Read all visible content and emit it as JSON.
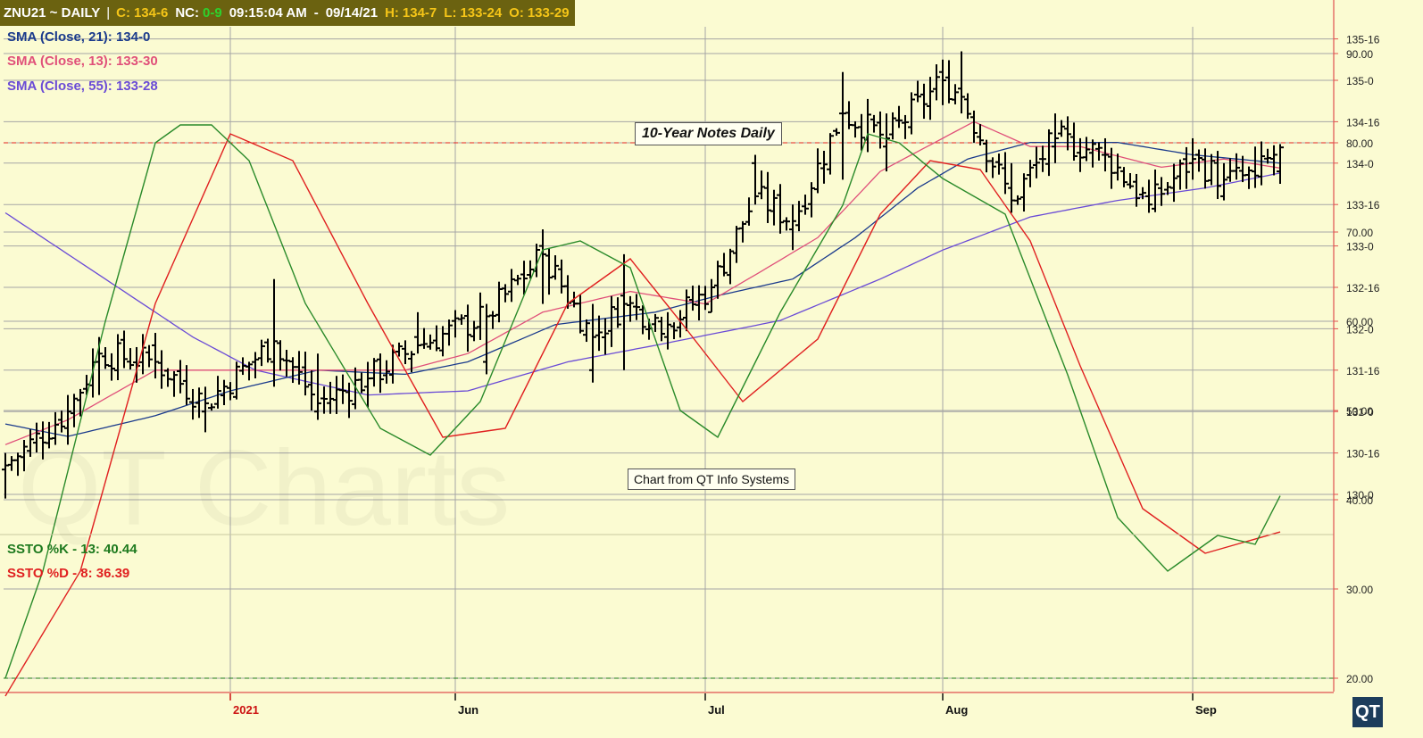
{
  "header": {
    "symbol": "ZNU21 ~ DAILY",
    "separator": "|",
    "close_label": "C:",
    "close_value": "134-6",
    "nc_label": "NC:",
    "nc_value": "0-9",
    "time": "09:15:04 AM",
    "dash": "-",
    "date": "09/14/21",
    "high_label": "H:",
    "high_value": "134-7",
    "low_label": "L:",
    "low_value": "133-24",
    "open_label": "O:",
    "open_value": "133-29"
  },
  "legend": [
    {
      "text": "SMA (Close, 21): 134-0",
      "color": "#1a3a8c"
    },
    {
      "text": "SMA (Close, 13): 133-30",
      "color": "#e0507a"
    },
    {
      "text": "SMA (Close, 55): 133-28",
      "color": "#6a4bd6"
    }
  ],
  "stoch_legend": [
    {
      "text": "SSTO %K - 13: 40.44",
      "color": "#1e7a1e"
    },
    {
      "text": "SSTO %D - 8: 36.39",
      "color": "#e02020"
    }
  ],
  "title_box": "10-Year Notes Daily",
  "credit_box": "Chart from QT Info Systems",
  "watermark": "QT Charts",
  "logo": "QT",
  "colors": {
    "background": "#fbfbd2",
    "header_bg": "#6b6210",
    "sma21": "#1a3a8c",
    "sma13": "#e0507a",
    "sma55": "#6a4bd6",
    "k_line": "#2a8a2a",
    "d_line": "#e02020",
    "axis_red": "#e05050"
  },
  "chart_data": [
    {
      "type": "ohlc",
      "price_unit": "points and 32nds",
      "ylim": [
        129.875,
        135.375
      ],
      "y_ticks": [
        {
          "value": 130.0,
          "label": "130-0"
        },
        {
          "value": 130.5,
          "label": "130-16"
        },
        {
          "value": 131.0,
          "label": "131-0"
        },
        {
          "value": 131.5,
          "label": "131-16"
        },
        {
          "value": 132.0,
          "label": "132-0"
        },
        {
          "value": 132.5,
          "label": "132-16"
        },
        {
          "value": 133.0,
          "label": "133-0"
        },
        {
          "value": 133.5,
          "label": "133-16"
        },
        {
          "value": 134.0,
          "label": "134-0"
        },
        {
          "value": 134.5,
          "label": "134-16"
        },
        {
          "value": 135.0,
          "label": "135-0"
        },
        {
          "value": 135.5,
          "label": "135-16"
        }
      ],
      "x_labels": [
        {
          "label": "2021",
          "index": 36,
          "color": "#cc1111"
        },
        {
          "label": "Jun",
          "index": 72,
          "color": "#111111"
        },
        {
          "label": "Jul",
          "index": 112,
          "color": "#111111"
        },
        {
          "label": "Aug",
          "index": 150,
          "color": "#111111"
        },
        {
          "label": "Sep",
          "index": 190,
          "color": "#111111"
        }
      ],
      "bar_count": 205,
      "key_bars": [
        {
          "i": 0,
          "o": 130.3,
          "h": 130.5,
          "l": 129.95,
          "c": 130.35
        },
        {
          "i": 10,
          "o": 130.8,
          "h": 131.2,
          "l": 130.6,
          "c": 131.0
        },
        {
          "i": 15,
          "o": 131.6,
          "h": 131.9,
          "l": 131.2,
          "c": 131.7
        },
        {
          "i": 24,
          "o": 131.8,
          "h": 131.95,
          "l": 131.4,
          "c": 131.6
        },
        {
          "i": 32,
          "o": 131.0,
          "h": 131.3,
          "l": 130.75,
          "c": 131.1
        },
        {
          "i": 43,
          "o": 131.6,
          "h": 132.6,
          "l": 131.3,
          "c": 131.85
        },
        {
          "i": 50,
          "o": 131.0,
          "h": 131.7,
          "l": 130.9,
          "c": 131.1
        },
        {
          "i": 58,
          "o": 131.3,
          "h": 131.6,
          "l": 131.05,
          "c": 131.4
        },
        {
          "i": 66,
          "o": 131.9,
          "h": 132.2,
          "l": 131.7,
          "c": 131.8
        },
        {
          "i": 77,
          "o": 131.6,
          "h": 132.3,
          "l": 131.45,
          "c": 132.15
        },
        {
          "i": 86,
          "o": 133.0,
          "h": 133.2,
          "l": 132.3,
          "c": 132.9
        },
        {
          "i": 94,
          "o": 131.5,
          "h": 132.3,
          "l": 131.35,
          "c": 131.9
        },
        {
          "i": 99,
          "o": 132.4,
          "h": 132.9,
          "l": 131.5,
          "c": 132.3
        },
        {
          "i": 106,
          "o": 131.9,
          "h": 132.2,
          "l": 131.75,
          "c": 132.05
        },
        {
          "i": 113,
          "o": 132.2,
          "h": 132.6,
          "l": 132.2,
          "c": 132.5
        },
        {
          "i": 120,
          "o": 134.0,
          "h": 134.1,
          "l": 133.5,
          "c": 133.6
        },
        {
          "i": 126,
          "o": 133.2,
          "h": 133.5,
          "l": 132.95,
          "c": 133.3
        },
        {
          "i": 134,
          "o": 134.6,
          "h": 135.1,
          "l": 133.8,
          "c": 134.6
        },
        {
          "i": 141,
          "o": 134.2,
          "h": 134.6,
          "l": 133.9,
          "c": 134.3
        },
        {
          "i": 150,
          "o": 135.1,
          "h": 135.25,
          "l": 134.7,
          "c": 135.0
        },
        {
          "i": 153,
          "o": 134.9,
          "h": 135.35,
          "l": 134.6,
          "c": 134.8
        },
        {
          "i": 161,
          "o": 133.7,
          "h": 134.0,
          "l": 133.4,
          "c": 133.55
        },
        {
          "i": 168,
          "o": 134.2,
          "h": 134.6,
          "l": 134.0,
          "c": 134.3
        },
        {
          "i": 176,
          "o": 134.1,
          "h": 134.3,
          "l": 133.9,
          "c": 134.1
        },
        {
          "i": 183,
          "o": 133.6,
          "h": 133.8,
          "l": 133.4,
          "c": 133.5
        },
        {
          "i": 190,
          "o": 134.0,
          "h": 134.3,
          "l": 133.8,
          "c": 134.05
        },
        {
          "i": 195,
          "o": 133.6,
          "h": 134.0,
          "l": 133.55,
          "c": 133.8
        },
        {
          "i": 200,
          "o": 133.9,
          "h": 134.2,
          "l": 133.7,
          "c": 133.85
        },
        {
          "i": 204,
          "o": 133.9,
          "h": 134.23,
          "l": 133.75,
          "c": 134.19
        }
      ],
      "sma13_points": [
        [
          0,
          130.6
        ],
        [
          10,
          130.9
        ],
        [
          24,
          131.5
        ],
        [
          36,
          131.5
        ],
        [
          50,
          131.5
        ],
        [
          64,
          131.5
        ],
        [
          74,
          131.7
        ],
        [
          86,
          132.2
        ],
        [
          100,
          132.45
        ],
        [
          112,
          132.3
        ],
        [
          120,
          132.65
        ],
        [
          130,
          133.1
        ],
        [
          140,
          133.9
        ],
        [
          150,
          134.3
        ],
        [
          155,
          134.5
        ],
        [
          164,
          134.2
        ],
        [
          172,
          134.2
        ],
        [
          185,
          133.95
        ],
        [
          195,
          134.05
        ],
        [
          204,
          133.94
        ]
      ],
      "sma21_points": [
        [
          0,
          130.85
        ],
        [
          10,
          130.7
        ],
        [
          24,
          130.95
        ],
        [
          36,
          131.25
        ],
        [
          50,
          131.5
        ],
        [
          64,
          131.45
        ],
        [
          74,
          131.6
        ],
        [
          88,
          132.05
        ],
        [
          104,
          132.2
        ],
        [
          114,
          132.4
        ],
        [
          126,
          132.6
        ],
        [
          136,
          133.1
        ],
        [
          146,
          133.7
        ],
        [
          154,
          134.05
        ],
        [
          164,
          134.25
        ],
        [
          178,
          134.25
        ],
        [
          190,
          134.1
        ],
        [
          204,
          134.0
        ]
      ],
      "sma55_points": [
        [
          0,
          133.4
        ],
        [
          16,
          132.6
        ],
        [
          30,
          131.9
        ],
        [
          40,
          131.5
        ],
        [
          58,
          131.2
        ],
        [
          74,
          131.25
        ],
        [
          90,
          131.6
        ],
        [
          104,
          131.8
        ],
        [
          124,
          132.1
        ],
        [
          140,
          132.6
        ],
        [
          150,
          132.95
        ],
        [
          164,
          133.35
        ],
        [
          178,
          133.55
        ],
        [
          192,
          133.7
        ],
        [
          204,
          133.88
        ]
      ]
    },
    {
      "type": "line",
      "name": "Slow Stochastic",
      "ylim": [
        15,
        95
      ],
      "y_ticks": [
        20,
        30,
        40,
        50,
        60,
        70,
        80,
        90
      ],
      "ref_lines": [
        80,
        20
      ],
      "k_points": [
        [
          0,
          20
        ],
        [
          6,
          32
        ],
        [
          16,
          60
        ],
        [
          24,
          80
        ],
        [
          28,
          82
        ],
        [
          33,
          82
        ],
        [
          39,
          78
        ],
        [
          48,
          62
        ],
        [
          60,
          48
        ],
        [
          68,
          45
        ],
        [
          76,
          51
        ],
        [
          86,
          68
        ],
        [
          92,
          69
        ],
        [
          100,
          66
        ],
        [
          108,
          50
        ],
        [
          114,
          47
        ],
        [
          124,
          61
        ],
        [
          134,
          73
        ],
        [
          138,
          81
        ],
        [
          143,
          80
        ],
        [
          150,
          76
        ],
        [
          160,
          72
        ],
        [
          170,
          54
        ],
        [
          178,
          38
        ],
        [
          186,
          32
        ],
        [
          194,
          36
        ],
        [
          200,
          35
        ],
        [
          204,
          40.44
        ]
      ],
      "d_points": [
        [
          0,
          18
        ],
        [
          12,
          32
        ],
        [
          24,
          62
        ],
        [
          36,
          81
        ],
        [
          46,
          78
        ],
        [
          58,
          62
        ],
        [
          70,
          47
        ],
        [
          80,
          48
        ],
        [
          90,
          62
        ],
        [
          100,
          67
        ],
        [
          108,
          60
        ],
        [
          118,
          51
        ],
        [
          130,
          58
        ],
        [
          140,
          72
        ],
        [
          148,
          78
        ],
        [
          156,
          77
        ],
        [
          164,
          69
        ],
        [
          172,
          55
        ],
        [
          182,
          39
        ],
        [
          192,
          34
        ],
        [
          204,
          36.39
        ]
      ]
    }
  ]
}
